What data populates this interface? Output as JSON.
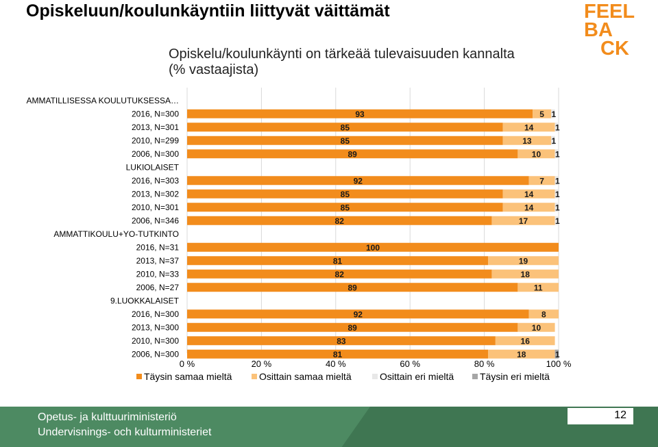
{
  "page": {
    "title": "Opiskeluun/koulunkäyntiin liittyvät väittämät",
    "logo_lines": [
      "FEEL",
      "BA",
      "CK"
    ],
    "page_number": "12",
    "footer_lines": [
      "Opetus- ja kulttuuriministeriö",
      "Undervisnings- och kulturministeriet"
    ]
  },
  "chart_data": {
    "type": "bar",
    "orientation": "horizontal",
    "stacked": true,
    "title": "Opiskelu/koulunkäynti on tärkeää tulevaisuuden kannalta (% vastaajista)",
    "title_lines": [
      "Opiskelu/koulunkäynti on tärkeää tulevaisuuden kannalta",
      "(% vastaajista)"
    ],
    "xlim": [
      0,
      100
    ],
    "x_ticks": [
      "0 %",
      "20 %",
      "40 %",
      "60 %",
      "80 %",
      "100 %"
    ],
    "grid": true,
    "legend_position": "bottom",
    "categories": [
      "AMMATILLISESSA KOULUTUKSESSA…",
      "2016, N=300",
      "2013, N=301",
      "2010, N=299",
      "2006, N=300",
      "LUKIOLAISET",
      "2016, N=303",
      "2013, N=302",
      "2010, N=301",
      "2006, N=346",
      "AMMATTIKOULU+YO-TUTKINTO",
      "2016, N=31",
      "2013, N=37",
      "2010, N=33",
      "2006, N=27",
      "9.LUOKKALAISET",
      "2016, N=300",
      "2013, N=300",
      "2010, N=300",
      "2006, N=300"
    ],
    "series": [
      {
        "name": "Täysin samaa mieltä",
        "color": "#f28c1c",
        "values": [
          null,
          93,
          85,
          85,
          89,
          null,
          92,
          85,
          85,
          82,
          null,
          100,
          81,
          82,
          89,
          null,
          92,
          89,
          83,
          81
        ]
      },
      {
        "name": "Osittain samaa mieltä",
        "color": "#fbc27a",
        "values": [
          null,
          5,
          14,
          13,
          10,
          null,
          7,
          14,
          14,
          17,
          null,
          0,
          19,
          18,
          11,
          null,
          8,
          10,
          16,
          18
        ]
      },
      {
        "name": "Osittain eri mieltä",
        "color": "#e8e8e8",
        "values": [
          null,
          1,
          1,
          1,
          1,
          null,
          1,
          1,
          1,
          1,
          null,
          0,
          0,
          0,
          0,
          null,
          0,
          0,
          0,
          0
        ]
      },
      {
        "name": "Täysin eri mieltä",
        "color": "#a6a6a6",
        "values": [
          null,
          0,
          0,
          0,
          0,
          null,
          0,
          0,
          0,
          0,
          null,
          0,
          0,
          0,
          0,
          null,
          0,
          0,
          0,
          1
        ]
      }
    ],
    "data_labels": [
      null,
      [
        "93",
        "5",
        "1",
        ""
      ],
      [
        "85",
        "14",
        "1",
        ""
      ],
      [
        "85",
        "13",
        "1",
        ""
      ],
      [
        "89",
        "10",
        "1",
        ""
      ],
      null,
      [
        "92",
        "7",
        "1",
        ""
      ],
      [
        "85",
        "14",
        "1",
        ""
      ],
      [
        "85",
        "14",
        "1",
        ""
      ],
      [
        "82",
        "17",
        "1",
        ""
      ],
      null,
      [
        "100",
        "",
        "",
        ""
      ],
      [
        "81",
        "19",
        "",
        ""
      ],
      [
        "82",
        "18",
        "",
        ""
      ],
      [
        "89",
        "11",
        "",
        ""
      ],
      null,
      [
        "92",
        "8",
        "",
        ""
      ],
      [
        "89",
        "10",
        "",
        ""
      ],
      [
        "83",
        "16",
        "",
        ""
      ],
      [
        "81",
        "18",
        "",
        "1"
      ]
    ]
  }
}
